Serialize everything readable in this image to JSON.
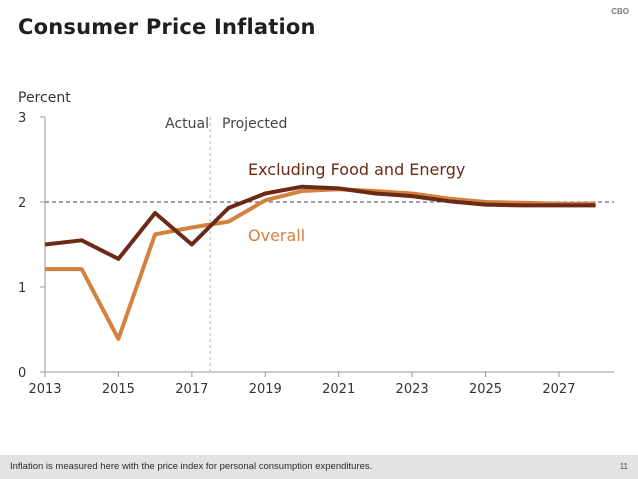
{
  "header": {
    "title": "Consumer Price Inflation",
    "logo": "CBO"
  },
  "footer": {
    "note": "Inflation is measured here with the price index for personal consumption expenditures.",
    "page": "11"
  },
  "colors": {
    "core": "#6b2a16",
    "overall": "#d3813e",
    "reference": "#444444",
    "divider": "#b5b5b5"
  },
  "chart_data": {
    "type": "line",
    "title": "Consumer Price Inflation",
    "ylabel": "Percent",
    "xlabel": "",
    "xlim": [
      2013,
      2028.5
    ],
    "ylim": [
      0,
      3
    ],
    "xticks": [
      2013,
      2015,
      2017,
      2019,
      2021,
      2023,
      2025,
      2027
    ],
    "xtick_labels": [
      "2013",
      "2015",
      "2017",
      "2019",
      "2021",
      "2023",
      "2025",
      "2027"
    ],
    "yticks": [
      0,
      1,
      2,
      3
    ],
    "ytick_labels": [
      "0",
      "1",
      "2",
      "3"
    ],
    "reference_line": {
      "y": 2.0,
      "style": "dashed"
    },
    "divider": {
      "x": 2017.5,
      "left_label": "Actual",
      "right_label": "Projected"
    },
    "series": [
      {
        "name": "Excluding Food and Energy",
        "x": [
          2013,
          2014,
          2015,
          2016,
          2017,
          2018,
          2019,
          2020,
          2021,
          2022,
          2023,
          2024,
          2025,
          2026,
          2027,
          2028
        ],
        "values": [
          1.5,
          1.55,
          1.33,
          1.87,
          1.5,
          1.93,
          2.1,
          2.18,
          2.16,
          2.1,
          2.07,
          2.01,
          1.97,
          1.96,
          1.96,
          1.96
        ]
      },
      {
        "name": "Overall",
        "x": [
          2013,
          2014,
          2015,
          2016,
          2017,
          2018,
          2019,
          2020,
          2021,
          2022,
          2023,
          2024,
          2025,
          2026,
          2027,
          2028
        ],
        "values": [
          1.21,
          1.21,
          0.39,
          1.62,
          1.7,
          1.77,
          2.02,
          2.13,
          2.15,
          2.13,
          2.1,
          2.04,
          2.0,
          1.99,
          1.98,
          1.98
        ]
      }
    ]
  }
}
